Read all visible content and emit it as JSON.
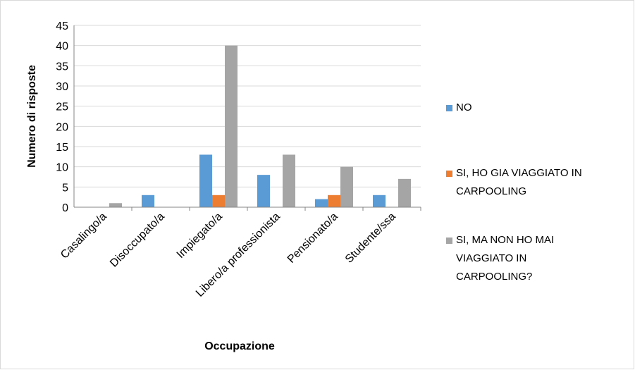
{
  "chart_data": {
    "type": "bar",
    "categories": [
      "Casalingo/a",
      "Disoccupato/a",
      "Impiegato/a",
      "Libero/a professionista",
      "Pensionato/a",
      "Studente/ssa"
    ],
    "series": [
      {
        "name": "NO",
        "color": "#5b9bd5",
        "values": [
          0,
          3,
          13,
          8,
          2,
          3
        ]
      },
      {
        "name": "SI, HO GIA VIAGGIATO IN CARPOOLING",
        "color": "#ed7d31",
        "values": [
          0,
          0,
          3,
          0,
          3,
          0
        ]
      },
      {
        "name": "SI, MA NON HO MAI VIAGGIATO IN CARPOOLING?",
        "color": "#a5a5a5",
        "values": [
          1,
          0,
          40,
          13,
          10,
          7
        ]
      }
    ],
    "x_label": "Occupazione",
    "y_label": "Numero di risposte",
    "ylim": [
      0,
      45
    ],
    "yticks": [
      0,
      5,
      10,
      15,
      20,
      25,
      30,
      35,
      40,
      45
    ],
    "grid": true
  }
}
